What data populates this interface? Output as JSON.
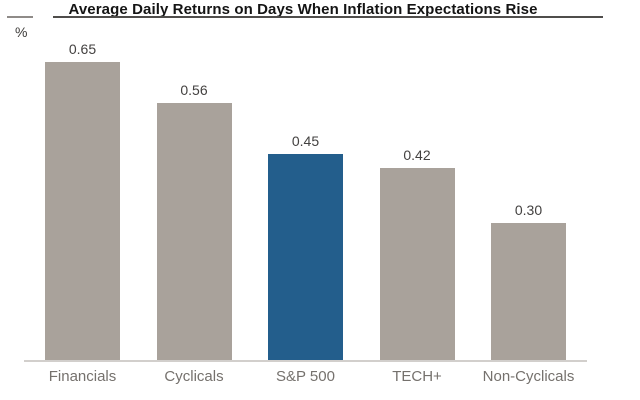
{
  "chart_data": {
    "type": "bar",
    "title": "Average Daily Returns on Days When Inflation Expectations Rise",
    "ylabel": "%",
    "xlabel": "",
    "categories": [
      "Financials",
      "Cyclicals",
      "S&P 500",
      "TECH+",
      "Non-Cyclicals"
    ],
    "values": [
      0.65,
      0.56,
      0.45,
      0.42,
      0.3
    ],
    "value_labels": [
      "0.65",
      "0.56",
      "0.45",
      "0.42",
      "0.30"
    ],
    "highlight_category": "S&P 500",
    "highlight_index": 2,
    "ylim": [
      0,
      0.7
    ],
    "grid": false,
    "legend_position": "none",
    "colors": {
      "bar_default": "#a9a29b",
      "bar_highlight": "#235e8c",
      "axis_line": "#d2cfcc",
      "title_text": "#141414",
      "title_rule": "#4f4d4b",
      "value_label": "#434140",
      "category_label": "#75716d"
    }
  }
}
